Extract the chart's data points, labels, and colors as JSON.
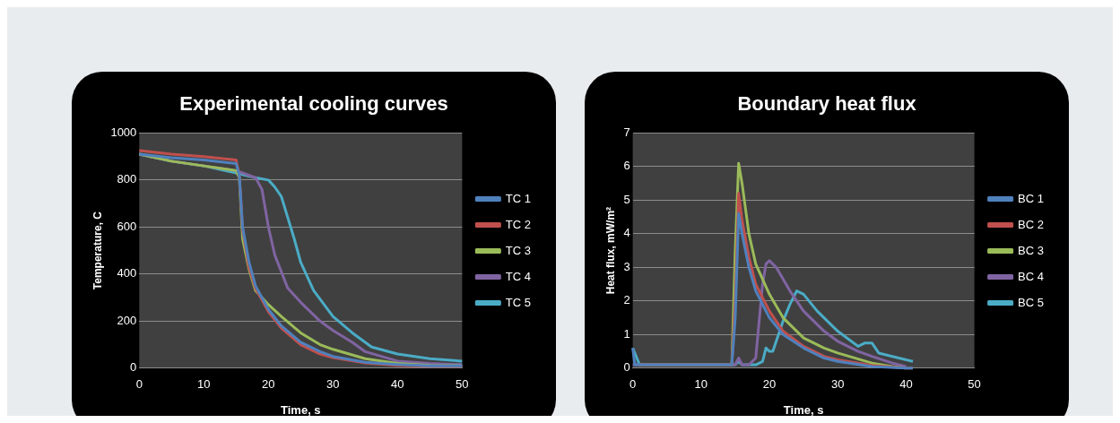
{
  "chart_data": [
    {
      "type": "line",
      "title": "Experimental cooling curves",
      "xlabel": "Time, s",
      "ylabel": "Temperature, C",
      "xlim": [
        0,
        50
      ],
      "xticks": [
        0,
        10,
        20,
        30,
        40,
        50
      ],
      "ylim": [
        0,
        1000
      ],
      "yticks": [
        0,
        200,
        400,
        600,
        800,
        1000
      ],
      "grid": "y",
      "legend": "right",
      "marker": "none",
      "series": [
        {
          "name": "TC 1",
          "color": "#4f81bd",
          "x": [
            0,
            5,
            10,
            15,
            15.5,
            16,
            17,
            18,
            20,
            22,
            25,
            28,
            30,
            35,
            40,
            45,
            50
          ],
          "values": [
            910,
            895,
            885,
            870,
            820,
            600,
            450,
            350,
            250,
            180,
            110,
            70,
            50,
            25,
            15,
            10,
            10
          ]
        },
        {
          "name": "TC 2",
          "color": "#c0504d",
          "x": [
            0,
            5,
            10,
            15,
            15.5,
            16,
            17,
            18,
            20,
            22,
            25,
            28,
            30,
            35,
            40,
            45,
            50
          ],
          "values": [
            925,
            910,
            900,
            885,
            820,
            590,
            430,
            340,
            240,
            170,
            100,
            60,
            45,
            22,
            12,
            8,
            8
          ]
        },
        {
          "name": "TC 3",
          "color": "#9bbb59",
          "x": [
            0,
            5,
            10,
            15,
            15.5,
            16,
            17,
            18,
            20,
            22,
            25,
            28,
            30,
            35,
            40,
            45,
            50
          ],
          "values": [
            910,
            880,
            860,
            840,
            810,
            550,
            420,
            330,
            270,
            220,
            150,
            100,
            80,
            40,
            20,
            12,
            10
          ]
        },
        {
          "name": "TC 4",
          "color": "#8064a2",
          "x": [
            0,
            5,
            10,
            15,
            18,
            19,
            20,
            21,
            23,
            25,
            28,
            30,
            33,
            35,
            40,
            45,
            50
          ],
          "values": [
            910,
            880,
            860,
            840,
            810,
            760,
            600,
            480,
            340,
            280,
            200,
            160,
            110,
            70,
            30,
            20,
            15
          ]
        },
        {
          "name": "TC 5",
          "color": "#4bacc6",
          "x": [
            0,
            5,
            10,
            15,
            18,
            20,
            21,
            22,
            23,
            24,
            25,
            27,
            30,
            33,
            35,
            36,
            40,
            45,
            50
          ],
          "values": [
            910,
            880,
            860,
            830,
            810,
            800,
            770,
            730,
            640,
            550,
            450,
            330,
            220,
            150,
            110,
            90,
            60,
            40,
            30
          ]
        }
      ]
    },
    {
      "type": "line",
      "title": "Boundary heat flux",
      "xlabel": "Time, s",
      "ylabel": "Heat flux, mW/m²",
      "xlim": [
        0,
        50
      ],
      "xticks": [
        0,
        10,
        20,
        30,
        40,
        50
      ],
      "ylim": [
        0,
        7
      ],
      "yticks": [
        0,
        1,
        2,
        3,
        4,
        5,
        6,
        7
      ],
      "grid": "y",
      "legend": "right",
      "marker": "none",
      "series": [
        {
          "name": "BC 1",
          "color": "#4f81bd",
          "x": [
            0,
            0.3,
            1,
            14.5,
            15,
            15.5,
            16,
            17,
            18,
            20,
            22,
            25,
            28,
            30,
            35,
            40,
            41
          ],
          "values": [
            0.6,
            0.1,
            0.1,
            0.1,
            1.5,
            4.6,
            4.0,
            3.0,
            2.3,
            1.5,
            1.0,
            0.6,
            0.3,
            0.2,
            0.05,
            0,
            0
          ]
        },
        {
          "name": "BC 2",
          "color": "#c0504d",
          "x": [
            1,
            14.5,
            15,
            15.5,
            16,
            17,
            18,
            20,
            22,
            25,
            28,
            30,
            35,
            40,
            41
          ],
          "values": [
            0.1,
            0.1,
            2.0,
            5.2,
            4.4,
            3.3,
            2.5,
            1.7,
            1.1,
            0.65,
            0.35,
            0.25,
            0.08,
            0,
            0
          ]
        },
        {
          "name": "BC 3",
          "color": "#9bbb59",
          "x": [
            1,
            14.5,
            15,
            15.5,
            16,
            17,
            18,
            20,
            22,
            25,
            28,
            30,
            35,
            38,
            40
          ],
          "values": [
            0.1,
            0.1,
            3.5,
            6.1,
            5.5,
            4.0,
            3.1,
            2.2,
            1.5,
            0.9,
            0.6,
            0.45,
            0.15,
            0.05,
            0
          ]
        },
        {
          "name": "BC 4",
          "color": "#8064a2",
          "x": [
            0,
            1,
            15,
            15.5,
            16,
            17,
            18,
            19,
            19.5,
            20,
            21,
            23,
            25,
            28,
            30,
            33,
            35,
            38,
            40
          ],
          "values": [
            0.1,
            0.1,
            0.1,
            0.3,
            0.1,
            0.1,
            0.3,
            2.5,
            3.1,
            3.2,
            3.0,
            2.3,
            1.7,
            1.1,
            0.8,
            0.5,
            0.35,
            0.15,
            0.05
          ]
        },
        {
          "name": "BC 5",
          "color": "#4bacc6",
          "x": [
            0,
            1,
            15,
            15.5,
            16,
            17,
            18,
            19,
            19.5,
            20,
            20.5,
            21,
            22,
            23,
            24,
            25,
            27,
            30,
            33,
            34,
            35,
            36,
            38,
            41
          ],
          "values": [
            0.6,
            0.1,
            0.1,
            0.2,
            0.1,
            0.1,
            0.1,
            0.2,
            0.6,
            0.5,
            0.5,
            0.8,
            1.4,
            1.9,
            2.3,
            2.2,
            1.7,
            1.1,
            0.65,
            0.75,
            0.75,
            0.45,
            0.35,
            0.2
          ]
        }
      ]
    }
  ]
}
